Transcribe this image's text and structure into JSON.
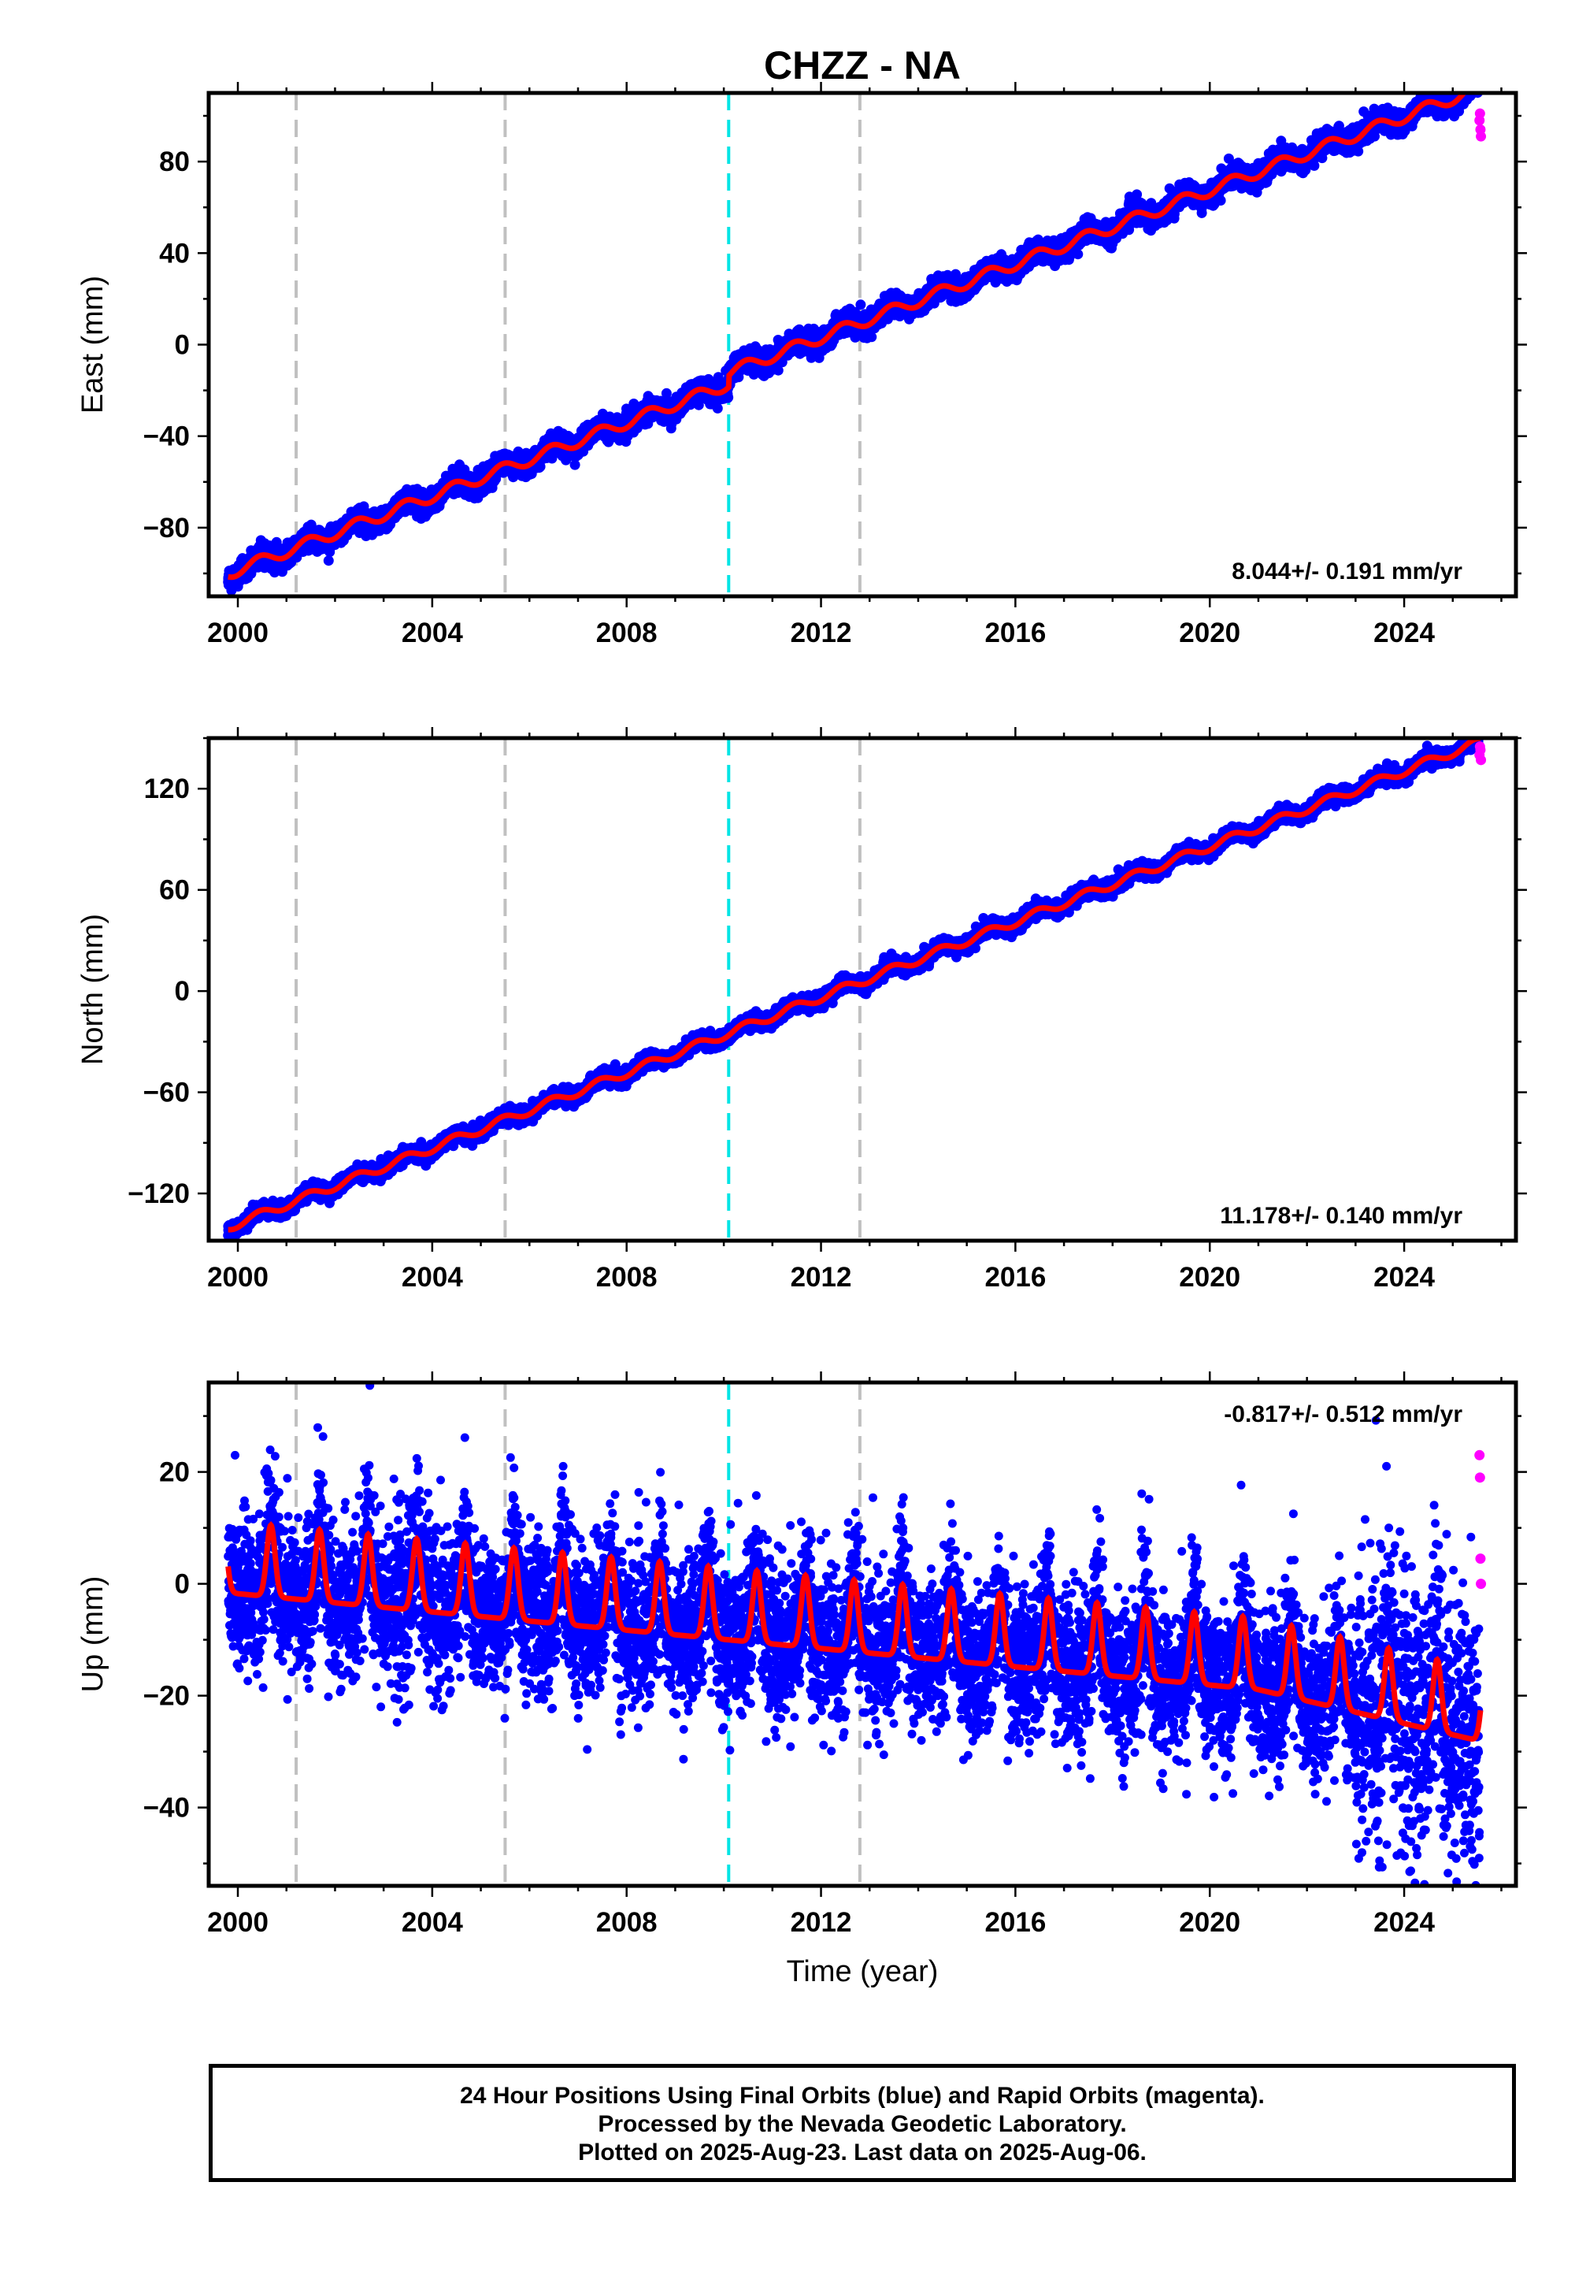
{
  "title": "CHZZ - NA",
  "x_label": "Time (year)",
  "footer": {
    "line1": "24 Hour Positions Using Final Orbits (blue) and Rapid Orbits (magenta).",
    "line2": "Processed by the Nevada Geodetic Laboratory.",
    "line3": "Plotted on 2025-Aug-23. Last data on 2025-Aug-06."
  },
  "colors": {
    "final": "#0000ff",
    "rapid": "#ff00ff",
    "model": "#ff0000",
    "offset_eq": "#00e5e5",
    "offset_equip": "#c0c0c0"
  },
  "chart_data": [
    {
      "type": "scatter",
      "component": "east",
      "ylabel": "East (mm)",
      "xlim": [
        1999.4,
        2026.3
      ],
      "ylim": [
        -110,
        110
      ],
      "x_ticks": [
        2000,
        2004,
        2008,
        2012,
        2016,
        2020,
        2024
      ],
      "y_ticks": [
        -80,
        -40,
        0,
        40,
        80
      ],
      "rate": "8.044+/- 0.191 mm/yr",
      "offsets": [
        {
          "x": 2001.2,
          "kind": "equip"
        },
        {
          "x": 2005.5,
          "kind": "equip"
        },
        {
          "x": 2010.1,
          "kind": "eq"
        },
        {
          "x": 2012.8,
          "kind": "equip"
        }
      ],
      "trend": {
        "t0": 1999.8,
        "y0": -100,
        "slope": 8.044,
        "annual_amp": 2.5,
        "step_at": 2010.1,
        "step": 5
      },
      "scatter_sd": 2.2,
      "rapid": [
        [
          2025.55,
          98
        ],
        [
          2025.57,
          94
        ],
        [
          2025.58,
          91
        ],
        [
          2025.56,
          101
        ]
      ]
    },
    {
      "type": "scatter",
      "component": "north",
      "ylabel": "North (mm)",
      "xlim": [
        1999.4,
        2026.3
      ],
      "ylim": [
        -148,
        150
      ],
      "x_ticks": [
        2000,
        2004,
        2008,
        2012,
        2016,
        2020,
        2024
      ],
      "y_ticks": [
        -120,
        -60,
        0,
        60,
        120
      ],
      "rate": "11.178+/- 0.140 mm/yr",
      "offsets": [
        {
          "x": 2001.2,
          "kind": "equip"
        },
        {
          "x": 2005.5,
          "kind": "equip"
        },
        {
          "x": 2010.1,
          "kind": "eq"
        },
        {
          "x": 2012.8,
          "kind": "equip"
        }
      ],
      "trend": {
        "t0": 1999.8,
        "y0": -140,
        "slope": 11.178,
        "annual_amp": 2.5,
        "step_at": 2010.1,
        "step": 0
      },
      "scatter_sd": 2.0,
      "rapid": [
        [
          2025.55,
          140
        ],
        [
          2025.57,
          143
        ],
        [
          2025.58,
          137
        ],
        [
          2025.56,
          145
        ]
      ]
    },
    {
      "type": "scatter",
      "component": "up",
      "ylabel": "Up (mm)",
      "xlim": [
        1999.4,
        2026.3
      ],
      "ylim": [
        -54,
        36
      ],
      "x_ticks": [
        2000,
        2004,
        2008,
        2012,
        2016,
        2020,
        2024
      ],
      "y_ticks": [
        -40,
        -20,
        0,
        20
      ],
      "rate": "-0.817+/- 0.512 mm/yr",
      "offsets": [
        {
          "x": 2001.2,
          "kind": "equip"
        },
        {
          "x": 2005.5,
          "kind": "equip"
        },
        {
          "x": 2010.1,
          "kind": "eq"
        },
        {
          "x": 2012.8,
          "kind": "equip"
        }
      ],
      "trend": {
        "t0": 1999.8,
        "y0": 2,
        "slope": -0.817,
        "annual_amp": 8,
        "step_at": 2010.1,
        "step": 0
      },
      "scatter_sd": 6.5,
      "rapid": [
        [
          2025.55,
          23
        ],
        [
          2025.56,
          19
        ],
        [
          2025.57,
          4.5
        ],
        [
          2025.58,
          0
        ]
      ]
    }
  ]
}
